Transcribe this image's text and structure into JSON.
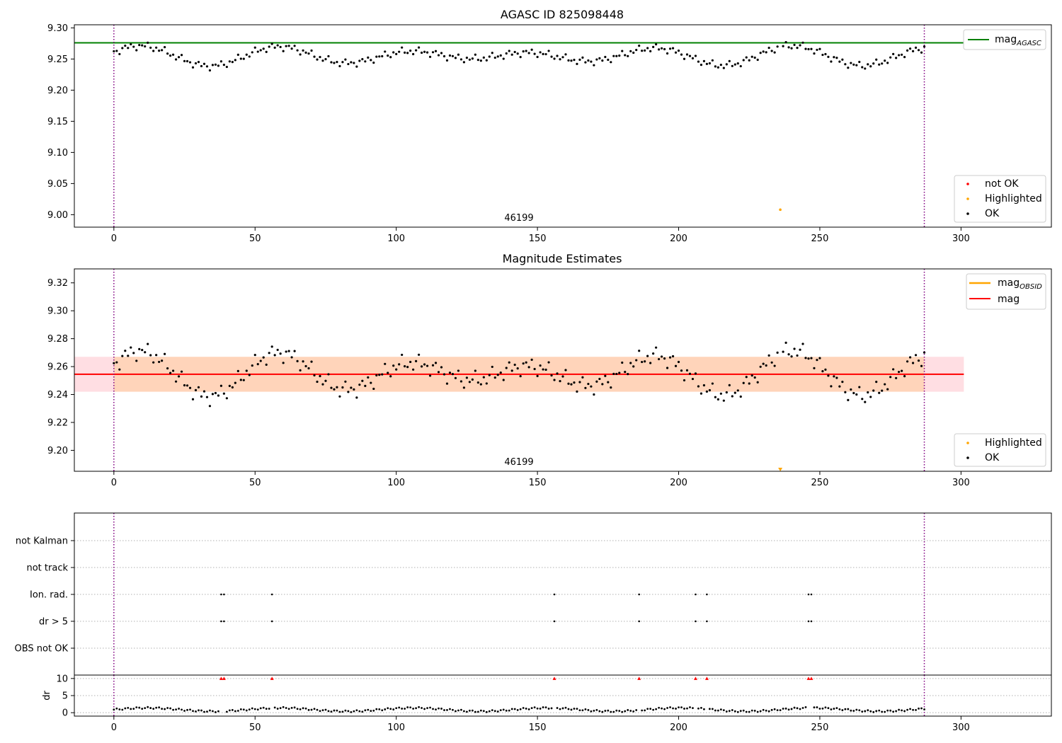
{
  "chart_data": [
    {
      "type": "scatter",
      "title": "AGASC ID 825098448",
      "xlim": [
        -14,
        332
      ],
      "ylim": [
        8.98,
        9.305
      ],
      "xticks": [
        0,
        50,
        100,
        150,
        200,
        250,
        300
      ],
      "yticks": [
        9.0,
        9.05,
        9.1,
        9.15,
        9.2,
        9.25,
        9.3
      ],
      "ytick_labels": [
        "9.00",
        "9.05",
        "9.10",
        "9.15",
        "9.20",
        "9.25",
        "9.30"
      ],
      "obsid_label": "46199",
      "obsid_label_x": 143,
      "vlines": [
        0,
        287
      ],
      "hlines": [
        {
          "name": "mag_AGASC",
          "y": 9.276,
          "color": "#008000"
        }
      ],
      "legend_top": {
        "position": "top-right",
        "entries": [
          {
            "label": "mag",
            "sub": "AGASC",
            "color": "#008000"
          }
        ]
      },
      "legend_bottom": {
        "position": "bottom-right",
        "entries": [
          {
            "label": "not OK",
            "color": "#ff0000"
          },
          {
            "label": "Highlighted",
            "color": "#ffa500"
          },
          {
            "label": "OK",
            "color": "#000000"
          }
        ]
      },
      "highlighted_points": [
        {
          "x": 236,
          "y": 9.008
        }
      ]
    },
    {
      "type": "scatter",
      "title": "Magnitude Estimates",
      "xlim": [
        -14,
        332
      ],
      "ylim": [
        9.185,
        9.33
      ],
      "xticks": [
        0,
        50,
        100,
        150,
        200,
        250,
        300
      ],
      "yticks": [
        9.2,
        9.22,
        9.24,
        9.26,
        9.28,
        9.3,
        9.32
      ],
      "ytick_labels": [
        "9.20",
        "9.22",
        "9.24",
        "9.26",
        "9.28",
        "9.30",
        "9.32"
      ],
      "obsid_label": "46199",
      "obsid_label_x": 143,
      "vlines": [
        0,
        287
      ],
      "mag": 9.2545,
      "band": [
        9.242,
        9.267
      ],
      "band_xrange": [
        -14,
        301
      ],
      "legend_top": {
        "position": "top-right",
        "entries": [
          {
            "label": "mag",
            "sub": "OBSID",
            "color": "#ffa500"
          },
          {
            "label": "mag",
            "sub": "",
            "color": "#ff0000"
          }
        ]
      },
      "legend_bottom": {
        "position": "bottom-right",
        "entries": [
          {
            "label": "Highlighted",
            "color": "#ffa500"
          },
          {
            "label": "OK",
            "color": "#000000"
          }
        ]
      },
      "highlighted_points": [
        {
          "x": 236,
          "y": 9.186
        }
      ]
    },
    {
      "type": "scatter",
      "title": "",
      "xlim": [
        -14,
        332
      ],
      "xticks": [
        0,
        50,
        100,
        150,
        200,
        250,
        300
      ],
      "flag_categories": [
        "not Kalman",
        "not track",
        "Ion. rad.",
        "dr > 5",
        "OBS not OK"
      ],
      "flag_points": {
        "Ion. rad.": [
          38,
          39,
          56,
          156,
          186,
          206,
          210,
          246,
          247
        ],
        "dr > 5": [
          38,
          39,
          56,
          156,
          186,
          206,
          210,
          246,
          247
        ]
      },
      "vlines": [
        0,
        287
      ]
    },
    {
      "type": "scatter",
      "title": "",
      "ylabel": "dr",
      "xlim": [
        -14,
        332
      ],
      "ylim": [
        -1,
        11
      ],
      "xticks": [
        0,
        50,
        100,
        150,
        200,
        250,
        300
      ],
      "yticks": [
        0,
        5,
        10
      ],
      "ytick_labels": [
        "0",
        "5",
        "10"
      ],
      "clipped_points_x": [
        38,
        39,
        56,
        156,
        186,
        206,
        210,
        246,
        247
      ],
      "vlines": [
        0,
        287
      ]
    }
  ]
}
